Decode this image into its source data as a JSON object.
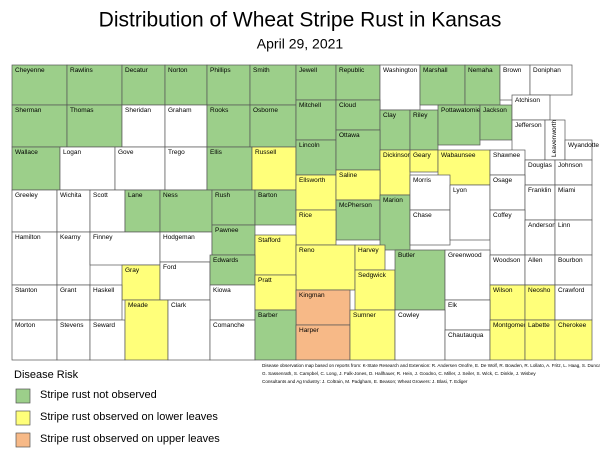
{
  "title": "Distribution of Wheat Stripe Rust in Kansas",
  "subtitle": "April 29, 2021",
  "legend": {
    "title": "Disease Risk",
    "items": [
      {
        "label": "Stripe rust not observed",
        "color": "#9ccf8a"
      },
      {
        "label": "Stripe rust observed on lower leaves",
        "color": "#ffff7a"
      },
      {
        "label": "Stripe rust observed on upper leaves",
        "color": "#f7b987"
      }
    ]
  },
  "note": [
    "Disease observation map based on reports from:  K-State Research and Extension: R. Andersen Onofre, E. De Wolf, R. Bowden,  R. Lollato, A. Fritz, L. Haag,  S. Duncan,",
    "G. Sassenrath, S. Campbel, C. Long, J. Falk-Jones, D. Hallhauer, R. Hein, J. Goodno, C. Miller,  J. Seiler, S. Wick, C. Dinkle, J. Wisbey",
    "Consultants and Ag Industry: J. Coltrain, M. Padgham, E. Beason; Wheat Growers: J. Blasi, T. Ediger"
  ],
  "counties": [
    {
      "name": "Cheyenne",
      "risk": 0
    },
    {
      "name": "Rawlins",
      "risk": 0
    },
    {
      "name": "Decatur",
      "risk": 0
    },
    {
      "name": "Norton",
      "risk": 0
    },
    {
      "name": "Phillips",
      "risk": 0
    },
    {
      "name": "Smith",
      "risk": 0
    },
    {
      "name": "Jewell",
      "risk": 0
    },
    {
      "name": "Republic",
      "risk": 0
    },
    {
      "name": "Washington",
      "risk": null
    },
    {
      "name": "Marshall",
      "risk": 0
    },
    {
      "name": "Nemaha",
      "risk": 0
    },
    {
      "name": "Brown",
      "risk": null
    },
    {
      "name": "Doniphan",
      "risk": null
    },
    {
      "name": "Sherman",
      "risk": 0
    },
    {
      "name": "Thomas",
      "risk": 0
    },
    {
      "name": "Sheridan",
      "risk": null
    },
    {
      "name": "Graham",
      "risk": null
    },
    {
      "name": "Rooks",
      "risk": 0
    },
    {
      "name": "Osborne",
      "risk": 0
    },
    {
      "name": "Mitchell",
      "risk": 0
    },
    {
      "name": "Cloud",
      "risk": 0
    },
    {
      "name": "Clay",
      "risk": 0
    },
    {
      "name": "Riley",
      "risk": 0
    },
    {
      "name": "Pottawatomie",
      "risk": 0
    },
    {
      "name": "Jackson",
      "risk": 0
    },
    {
      "name": "Atchison",
      "risk": null
    },
    {
      "name": "Jefferson",
      "risk": null
    },
    {
      "name": "Leavenworth",
      "risk": null
    },
    {
      "name": "Wyandotte",
      "risk": null
    },
    {
      "name": "Wallace",
      "risk": 0
    },
    {
      "name": "Logan",
      "risk": null
    },
    {
      "name": "Gove",
      "risk": null
    },
    {
      "name": "Trego",
      "risk": null
    },
    {
      "name": "Ellis",
      "risk": 0
    },
    {
      "name": "Russell",
      "risk": 1
    },
    {
      "name": "Lincoln",
      "risk": 0
    },
    {
      "name": "Ottawa",
      "risk": 0
    },
    {
      "name": "Dickinson",
      "risk": 1
    },
    {
      "name": "Geary",
      "risk": 1
    },
    {
      "name": "Wabaunsee",
      "risk": 1
    },
    {
      "name": "Shawnee",
      "risk": null
    },
    {
      "name": "Douglas",
      "risk": null
    },
    {
      "name": "Johnson",
      "risk": null
    },
    {
      "name": "Greeley",
      "risk": null
    },
    {
      "name": "Wichita",
      "risk": null
    },
    {
      "name": "Scott",
      "risk": null
    },
    {
      "name": "Lane",
      "risk": 0
    },
    {
      "name": "Ness",
      "risk": 0
    },
    {
      "name": "Rush",
      "risk": 0
    },
    {
      "name": "Barton",
      "risk": 0
    },
    {
      "name": "Ellsworth",
      "risk": 1
    },
    {
      "name": "Saline",
      "risk": 1
    },
    {
      "name": "McPherson",
      "risk": 0
    },
    {
      "name": "Marion",
      "risk": 0
    },
    {
      "name": "Morris",
      "risk": null
    },
    {
      "name": "Chase",
      "risk": null
    },
    {
      "name": "Lyon",
      "risk": null
    },
    {
      "name": "Osage",
      "risk": null
    },
    {
      "name": "Franklin",
      "risk": null
    },
    {
      "name": "Miami",
      "risk": null
    },
    {
      "name": "Rice",
      "risk": 1
    },
    {
      "name": "Hamilton",
      "risk": null
    },
    {
      "name": "Kearny",
      "risk": null
    },
    {
      "name": "Finney",
      "risk": null
    },
    {
      "name": "Hodgeman",
      "risk": null
    },
    {
      "name": "Pawnee",
      "risk": 0
    },
    {
      "name": "Stafford",
      "risk": 1
    },
    {
      "name": "Reno",
      "risk": 1
    },
    {
      "name": "Harvey",
      "risk": 1
    },
    {
      "name": "Coffey",
      "risk": null
    },
    {
      "name": "Anderson",
      "risk": null
    },
    {
      "name": "Linn",
      "risk": null
    },
    {
      "name": "Gray",
      "risk": 1
    },
    {
      "name": "Ford",
      "risk": null
    },
    {
      "name": "Edwards",
      "risk": 0
    },
    {
      "name": "Sedgwick",
      "risk": 1
    },
    {
      "name": "Butler",
      "risk": 0
    },
    {
      "name": "Greenwood",
      "risk": null
    },
    {
      "name": "Woodson",
      "risk": null
    },
    {
      "name": "Allen",
      "risk": null
    },
    {
      "name": "Bourbon",
      "risk": null
    },
    {
      "name": "Stanton",
      "risk": null
    },
    {
      "name": "Grant",
      "risk": null
    },
    {
      "name": "Haskell",
      "risk": null
    },
    {
      "name": "Kiowa",
      "risk": null
    },
    {
      "name": "Pratt",
      "risk": 1
    },
    {
      "name": "Kingman",
      "risk": 2
    },
    {
      "name": "Wilson",
      "risk": 1
    },
    {
      "name": "Neosho",
      "risk": 1
    },
    {
      "name": "Crawford",
      "risk": null
    },
    {
      "name": "Elk",
      "risk": null
    },
    {
      "name": "Morton",
      "risk": null
    },
    {
      "name": "Stevens",
      "risk": null
    },
    {
      "name": "Seward",
      "risk": null
    },
    {
      "name": "Meade",
      "risk": 1
    },
    {
      "name": "Clark",
      "risk": null
    },
    {
      "name": "Comanche",
      "risk": null
    },
    {
      "name": "Barber",
      "risk": 0
    },
    {
      "name": "Harper",
      "risk": 2
    },
    {
      "name": "Sumner",
      "risk": 1
    },
    {
      "name": "Cowley",
      "risk": null
    },
    {
      "name": "Chautauqua",
      "risk": null
    },
    {
      "name": "Montgomery",
      "risk": 1
    },
    {
      "name": "Labette",
      "risk": 1
    },
    {
      "name": "Cherokee",
      "risk": 1
    }
  ]
}
